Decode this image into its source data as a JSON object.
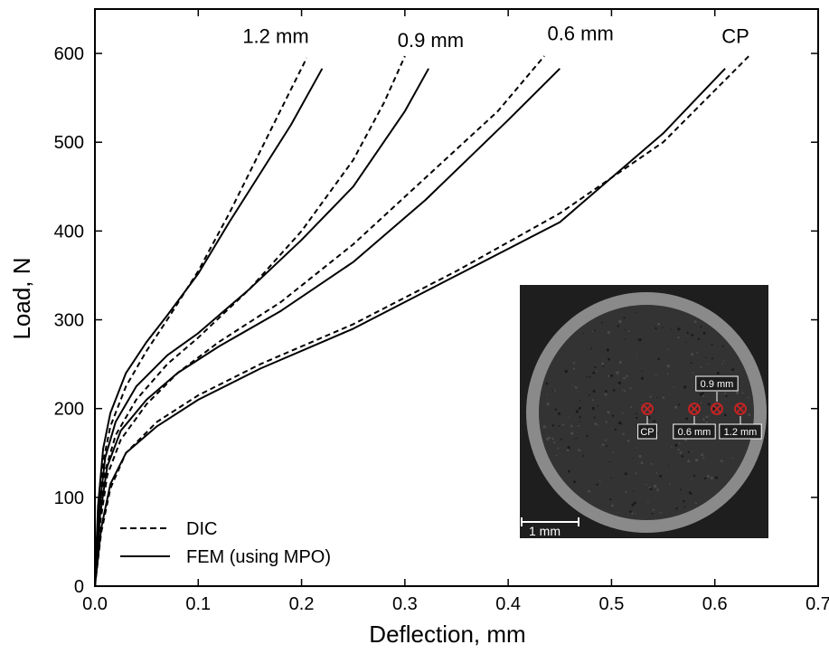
{
  "chart_data": {
    "type": "line",
    "xlabel": "Deflection, mm",
    "ylabel": "Load, N",
    "xlim": [
      0,
      0.7
    ],
    "ylim": [
      0,
      650
    ],
    "xticks": [
      "0.0",
      "0.1",
      "0.2",
      "0.3",
      "0.4",
      "0.5",
      "0.6",
      "0.7"
    ],
    "yticks": [
      "0",
      "100",
      "200",
      "300",
      "400",
      "500",
      "600"
    ],
    "legend": {
      "position": "bottom-left",
      "entries": [
        {
          "style": "dashed",
          "label": "DIC"
        },
        {
          "style": "solid",
          "label": "FEM (using MPO)"
        }
      ]
    },
    "series": [
      {
        "group": "1.2 mm",
        "style": "dashed",
        "x": [
          0,
          0.003,
          0.008,
          0.015,
          0.03,
          0.05,
          0.07,
          0.1,
          0.13,
          0.16,
          0.19,
          0.205
        ],
        "y": [
          0,
          80,
          140,
          180,
          225,
          265,
          300,
          355,
          420,
          490,
          560,
          595
        ]
      },
      {
        "group": "1.2 mm",
        "style": "solid",
        "x": [
          0,
          0.003,
          0.008,
          0.015,
          0.03,
          0.05,
          0.07,
          0.1,
          0.13,
          0.16,
          0.19,
          0.22
        ],
        "y": [
          0,
          90,
          155,
          195,
          240,
          275,
          305,
          352,
          410,
          465,
          520,
          583
        ]
      },
      {
        "group": "0.9 mm",
        "style": "dashed",
        "x": [
          0,
          0.004,
          0.01,
          0.02,
          0.04,
          0.07,
          0.1,
          0.15,
          0.2,
          0.25,
          0.28,
          0.3
        ],
        "y": [
          0,
          75,
          130,
          170,
          210,
          250,
          280,
          335,
          400,
          480,
          545,
          597
        ]
      },
      {
        "group": "0.9 mm",
        "style": "solid",
        "x": [
          0,
          0.004,
          0.01,
          0.02,
          0.04,
          0.07,
          0.1,
          0.15,
          0.2,
          0.25,
          0.3,
          0.323
        ],
        "y": [
          0,
          85,
          145,
          185,
          225,
          260,
          285,
          335,
          390,
          450,
          535,
          583
        ]
      },
      {
        "group": "0.6 mm",
        "style": "dashed",
        "x": [
          0,
          0.005,
          0.012,
          0.025,
          0.05,
          0.08,
          0.12,
          0.18,
          0.25,
          0.32,
          0.39,
          0.435
        ],
        "y": [
          0,
          70,
          125,
          165,
          205,
          240,
          275,
          320,
          385,
          460,
          535,
          597
        ]
      },
      {
        "group": "0.6 mm",
        "style": "solid",
        "x": [
          0,
          0.005,
          0.012,
          0.025,
          0.05,
          0.08,
          0.12,
          0.18,
          0.25,
          0.32,
          0.4,
          0.45
        ],
        "y": [
          0,
          80,
          135,
          175,
          210,
          240,
          270,
          310,
          365,
          435,
          525,
          583
        ]
      },
      {
        "group": "CP",
        "style": "dashed",
        "x": [
          0,
          0.006,
          0.015,
          0.03,
          0.06,
          0.1,
          0.16,
          0.25,
          0.35,
          0.45,
          0.55,
          0.633
        ],
        "y": [
          0,
          60,
          110,
          150,
          185,
          215,
          250,
          295,
          355,
          420,
          500,
          597
        ]
      },
      {
        "group": "CP",
        "style": "solid",
        "x": [
          0,
          0.006,
          0.015,
          0.03,
          0.06,
          0.1,
          0.16,
          0.25,
          0.35,
          0.45,
          0.55,
          0.61
        ],
        "y": [
          0,
          65,
          115,
          150,
          180,
          210,
          245,
          290,
          350,
          410,
          510,
          583
        ]
      }
    ],
    "annotations": [
      {
        "text": "1.2 mm",
        "x": 0.175,
        "y": 612
      },
      {
        "text": "0.9 mm",
        "x": 0.325,
        "y": 607
      },
      {
        "text": "0.6 mm",
        "x": 0.47,
        "y": 615
      },
      {
        "text": "CP",
        "x": 0.62,
        "y": 612
      }
    ],
    "inset": {
      "markers": [
        {
          "label": "CP"
        },
        {
          "label": "0.6 mm"
        },
        {
          "label": "0.9 mm"
        },
        {
          "label": "1.2 mm"
        }
      ],
      "scale_bar": "1 mm",
      "colors": {
        "background": "#1e1e1e",
        "disc": "#333333",
        "rim": "#8a8a8a",
        "marker": "#cc2222"
      }
    }
  }
}
